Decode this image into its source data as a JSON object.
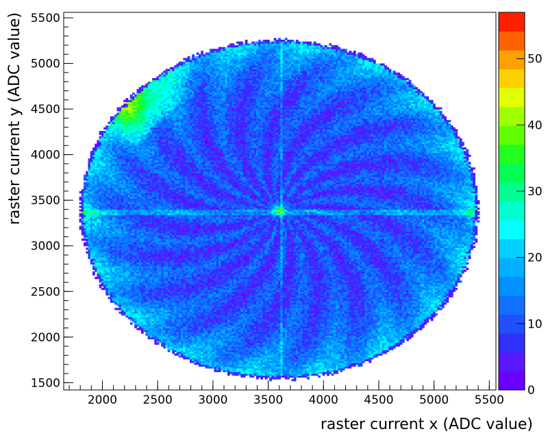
{
  "chart_data": {
    "type": "heatmap",
    "title": "",
    "xlabel": "raster current x (ADC value)",
    "ylabel": "raster current y (ADC value)",
    "xlim": [
      1650,
      5560
    ],
    "ylim": [
      1420,
      5560
    ],
    "zlim": [
      0,
      57
    ],
    "x_ticks": [
      2000,
      2500,
      3000,
      3500,
      4000,
      4500,
      5000,
      5500
    ],
    "y_ticks": [
      1500,
      2000,
      2500,
      3000,
      3500,
      4000,
      4500,
      5000,
      5500
    ],
    "z_ticks": [
      0,
      10,
      20,
      30,
      40,
      50
    ],
    "colorbar_levels": 20,
    "colormap": [
      "#6a00ff",
      "#5a18ff",
      "#3030ff",
      "#2050ff",
      "#1070ff",
      "#0090ff",
      "#00b0ff",
      "#00d0ff",
      "#00ffff",
      "#00ffd0",
      "#00ff90",
      "#00ff50",
      "#20ff20",
      "#60ff00",
      "#a0ff00",
      "#e0ff00",
      "#ffd000",
      "#ffa000",
      "#ff6000",
      "#ff2000"
    ],
    "distribution": {
      "shape": "ellipse",
      "center": {
        "x": 3600,
        "y": 3400
      },
      "semi_axis_x": 1800,
      "semi_axis_y": 1860,
      "bin_width_x": 20,
      "bin_width_y": 20,
      "interior_counts": 9,
      "rim_counts": 22,
      "upper_left_hotspot": {
        "x": 2300,
        "y": 4550,
        "counts": 40
      },
      "horizontal_stripe": {
        "y": 3370,
        "counts": 16
      },
      "vertical_stripe": {
        "x": 3620,
        "counts": 16
      },
      "center_peak": {
        "x": 3600,
        "y": 3400,
        "counts": 30
      }
    }
  }
}
